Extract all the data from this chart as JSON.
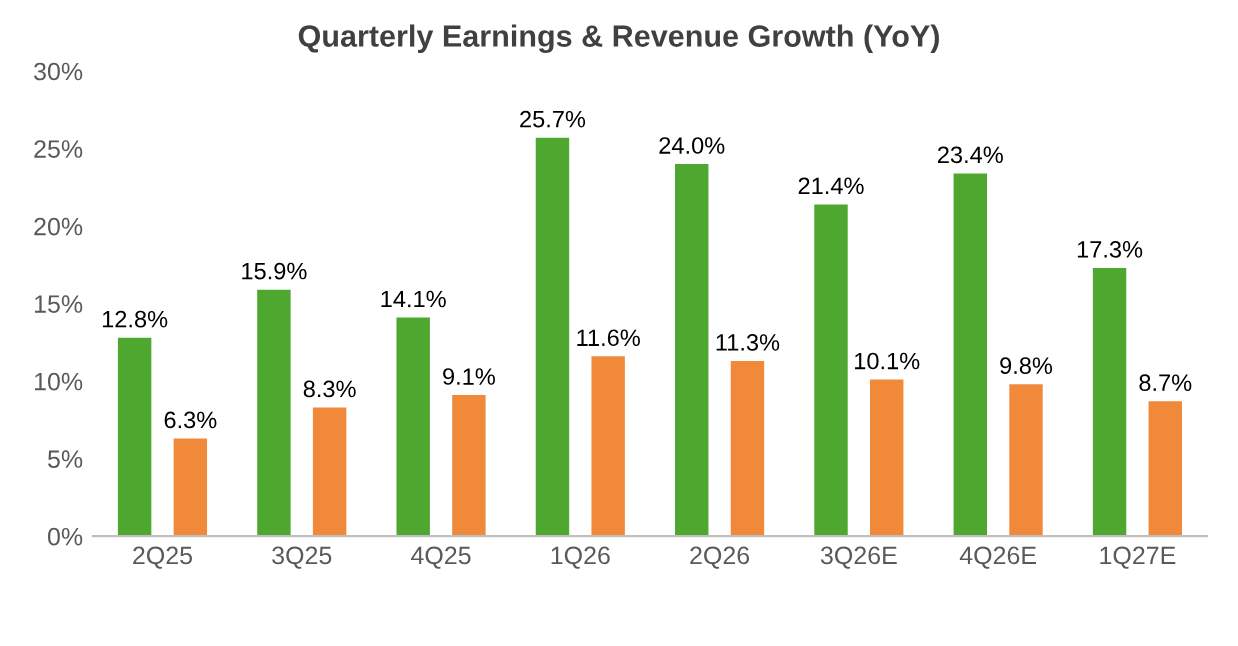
{
  "chart_data": {
    "type": "bar",
    "title": "Quarterly Earnings & Revenue Growth (YoY)",
    "categories": [
      "2Q25",
      "3Q25",
      "4Q25",
      "1Q26",
      "2Q26",
      "3Q26E",
      "4Q26E",
      "1Q27E"
    ],
    "series": [
      {
        "color": "#4ea72e",
        "values": [
          12.8,
          15.9,
          14.1,
          25.7,
          24.0,
          21.4,
          23.4,
          17.3
        ],
        "value_labels": [
          "12.8%",
          "15.9%",
          "14.1%",
          "25.7%",
          "24.0%",
          "21.4%",
          "23.4%",
          "17.3%"
        ]
      },
      {
        "color": "#f08a3a",
        "values": [
          6.3,
          8.3,
          9.1,
          11.6,
          11.3,
          10.1,
          9.8,
          8.7
        ],
        "value_labels": [
          "6.3%",
          "8.3%",
          "9.1%",
          "11.6%",
          "11.3%",
          "10.1%",
          "9.8%",
          "8.7%"
        ]
      }
    ],
    "ylim": [
      0,
      30
    ],
    "yticks": [
      {
        "value": 0,
        "label": "0%"
      },
      {
        "value": 5,
        "label": "5%"
      },
      {
        "value": 10,
        "label": "10%"
      },
      {
        "value": 15,
        "label": "15%"
      },
      {
        "value": 20,
        "label": "20%"
      },
      {
        "value": 25,
        "label": "25%"
      },
      {
        "value": 30,
        "label": "30%"
      }
    ],
    "grid": false
  }
}
